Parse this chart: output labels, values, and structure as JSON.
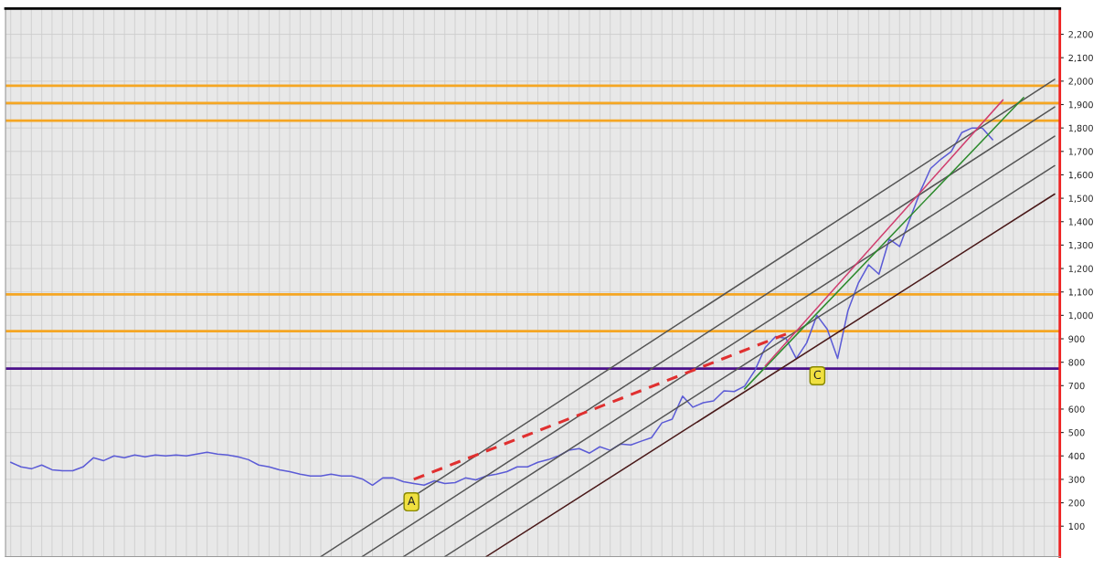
{
  "chart_data": {
    "type": "line",
    "categories": [
      null,
      null,
      null,
      null,
      null,
      null,
      null,
      null,
      null,
      null,
      null,
      null,
      null,
      null,
      null,
      null,
      null,
      null,
      null,
      null,
      null,
      null,
      null,
      null,
      null,
      null,
      null,
      null,
      null,
      null,
      null,
      null,
      null,
      null,
      null,
      null,
      null,
      null,
      null,
      null,
      null,
      null,
      null,
      null,
      null,
      null,
      null,
      null,
      null,
      null,
      null,
      null,
      null,
      null,
      null,
      null,
      null,
      null,
      null,
      null,
      null,
      null,
      null,
      null,
      null,
      null,
      null,
      null,
      null,
      null,
      null,
      null,
      null,
      null,
      null,
      null,
      null,
      null,
      null,
      null,
      null,
      null,
      null,
      null,
      null,
      null,
      null,
      null,
      null,
      null,
      null,
      null,
      null,
      null,
      null,
      null,
      null,
      null,
      null,
      null,
      null,
      null
    ],
    "ylim": [
      -30,
      2310
    ],
    "yticks": [
      100,
      200,
      300,
      400,
      500,
      600,
      700,
      800,
      900,
      {
        "value": 1000,
        "label": "1,000"
      },
      {
        "value": 1100,
        "label": "1,100"
      },
      {
        "value": 1200,
        "label": "1,200"
      },
      {
        "value": 1300,
        "label": "1,300"
      },
      {
        "value": 1400,
        "label": "1,400"
      },
      {
        "value": 1500,
        "label": "1,500"
      },
      {
        "value": 1600,
        "label": "1,600"
      },
      {
        "value": 1700,
        "label": "1,700"
      },
      {
        "value": 1800,
        "label": "1,800"
      },
      {
        "value": 1900,
        "label": "1,900"
      },
      {
        "value": 2000,
        "label": "2,000"
      },
      {
        "value": 2100,
        "label": "2,100"
      },
      {
        "value": 2200,
        "label": "2,200"
      }
    ],
    "tick_labels": "y",
    "grid": true,
    "line_style": "solid",
    "marker": "none",
    "series": [
      {
        "color": "#5b5bd6",
        "values": [
          373,
          353,
          345,
          361,
          341,
          337,
          337,
          353,
          392,
          380,
          400,
          392,
          404,
          396,
          404,
          400,
          404,
          400,
          408,
          416,
          408,
          404,
          396,
          384,
          361,
          353,
          341,
          333,
          322,
          314,
          314,
          322,
          314,
          314,
          302,
          275,
          306,
          306,
          290,
          282,
          275,
          294,
          282,
          286,
          306,
          298,
          314,
          322,
          333,
          353,
          353,
          373,
          384,
          400,
          424,
          431,
          412,
          439,
          424,
          451,
          447,
          463,
          478,
          541,
          557,
          655,
          608,
          627,
          635,
          678,
          675,
          698,
          765,
          863,
          910,
          902,
          816,
          882,
          1000,
          941,
          816,
          1020,
          1137,
          1216,
          1176,
          1325,
          1294,
          1412,
          1529,
          1627,
          1667,
          1700,
          1780,
          1800,
          1800,
          1750,
          null,
          null,
          null,
          null,
          null,
          null
        ]
      },
      {
        "color": "#555555",
        "values": [
          null,
          null,
          null,
          null,
          null,
          null,
          null,
          null,
          null,
          null,
          null,
          null,
          null,
          null,
          null,
          null,
          null,
          null,
          null,
          null,
          null,
          null,
          null,
          null,
          null,
          null,
          null,
          null,
          null,
          null,
          -30,
          null,
          null,
          null,
          null,
          null,
          null,
          null,
          null,
          null,
          null,
          null,
          null,
          null,
          null,
          null,
          null,
          null,
          null,
          null,
          null,
          null,
          null,
          null,
          null,
          null,
          null,
          null,
          null,
          null,
          null,
          null,
          null,
          null,
          null,
          null,
          null,
          null,
          null,
          null,
          null,
          null,
          null,
          null,
          null,
          null,
          null,
          null,
          null,
          null,
          null,
          null,
          null,
          null,
          null,
          null,
          null,
          null,
          null,
          null,
          null,
          null,
          null,
          null,
          null,
          null,
          null,
          null,
          null,
          null,
          null,
          2008
        ]
      },
      {
        "color": "#555555",
        "values": [
          null,
          null,
          null,
          null,
          null,
          null,
          null,
          null,
          null,
          null,
          null,
          null,
          null,
          null,
          null,
          null,
          null,
          null,
          null,
          null,
          null,
          null,
          null,
          null,
          null,
          null,
          null,
          null,
          null,
          null,
          null,
          null,
          null,
          null,
          -30,
          null,
          null,
          null,
          null,
          null,
          null,
          null,
          null,
          null,
          null,
          null,
          null,
          null,
          null,
          null,
          null,
          null,
          null,
          null,
          null,
          null,
          null,
          null,
          null,
          null,
          null,
          null,
          null,
          null,
          null,
          null,
          null,
          null,
          null,
          null,
          null,
          null,
          null,
          null,
          null,
          null,
          null,
          null,
          null,
          null,
          null,
          null,
          null,
          null,
          null,
          null,
          null,
          null,
          null,
          null,
          null,
          null,
          null,
          null,
          null,
          null,
          null,
          null,
          null,
          null,
          null,
          1890
        ]
      },
      {
        "color": "#555555",
        "values": [
          null,
          null,
          null,
          null,
          null,
          null,
          null,
          null,
          null,
          null,
          null,
          null,
          null,
          null,
          null,
          null,
          null,
          null,
          null,
          null,
          null,
          null,
          null,
          null,
          null,
          null,
          null,
          null,
          null,
          null,
          null,
          null,
          null,
          null,
          null,
          null,
          null,
          null,
          -30,
          null,
          null,
          null,
          null,
          null,
          null,
          null,
          null,
          null,
          null,
          null,
          null,
          null,
          null,
          null,
          null,
          null,
          null,
          null,
          null,
          null,
          null,
          null,
          null,
          null,
          null,
          null,
          null,
          null,
          null,
          null,
          null,
          null,
          null,
          null,
          null,
          null,
          null,
          null,
          null,
          null,
          null,
          null,
          null,
          null,
          null,
          null,
          null,
          null,
          null,
          null,
          null,
          null,
          null,
          null,
          null,
          null,
          null,
          null,
          null,
          null,
          null,
          1765
        ]
      },
      {
        "color": "#555555",
        "values": [
          null,
          null,
          null,
          null,
          null,
          null,
          null,
          null,
          null,
          null,
          null,
          null,
          null,
          null,
          null,
          null,
          null,
          null,
          null,
          null,
          null,
          null,
          null,
          null,
          null,
          null,
          null,
          null,
          null,
          null,
          null,
          null,
          null,
          null,
          null,
          null,
          null,
          null,
          null,
          null,
          null,
          null,
          -30,
          null,
          null,
          null,
          null,
          null,
          null,
          null,
          null,
          null,
          null,
          null,
          null,
          null,
          null,
          null,
          null,
          null,
          null,
          null,
          null,
          null,
          null,
          null,
          null,
          null,
          null,
          null,
          null,
          null,
          null,
          null,
          null,
          null,
          null,
          null,
          null,
          null,
          null,
          null,
          null,
          null,
          null,
          null,
          null,
          null,
          null,
          null,
          null,
          null,
          null,
          null,
          null,
          null,
          null,
          null,
          null,
          null,
          null,
          1639
        ]
      },
      {
        "color": "#4a1a1a",
        "values": [
          null,
          null,
          null,
          null,
          null,
          null,
          null,
          null,
          null,
          null,
          null,
          null,
          null,
          null,
          null,
          null,
          null,
          null,
          null,
          null,
          null,
          null,
          null,
          null,
          null,
          null,
          null,
          null,
          null,
          null,
          null,
          null,
          null,
          null,
          null,
          null,
          null,
          null,
          null,
          null,
          null,
          null,
          null,
          null,
          null,
          null,
          -30,
          null,
          null,
          null,
          null,
          null,
          null,
          null,
          null,
          null,
          null,
          null,
          null,
          null,
          null,
          null,
          null,
          null,
          null,
          null,
          null,
          null,
          null,
          null,
          null,
          null,
          null,
          null,
          null,
          null,
          null,
          null,
          null,
          null,
          null,
          null,
          null,
          null,
          null,
          null,
          null,
          null,
          null,
          null,
          null,
          null,
          null,
          null,
          null,
          null,
          null,
          null,
          null,
          null,
          null,
          1518
        ]
      },
      {
        "color": "#2e8b2e",
        "values": [
          null,
          null,
          null,
          null,
          null,
          null,
          null,
          null,
          null,
          null,
          null,
          null,
          null,
          null,
          null,
          null,
          null,
          null,
          null,
          null,
          null,
          null,
          null,
          null,
          null,
          null,
          null,
          null,
          null,
          null,
          null,
          null,
          null,
          null,
          null,
          null,
          null,
          null,
          null,
          null,
          null,
          null,
          null,
          null,
          null,
          null,
          null,
          null,
          null,
          null,
          null,
          null,
          null,
          null,
          null,
          null,
          null,
          null,
          null,
          null,
          null,
          null,
          null,
          null,
          null,
          null,
          null,
          null,
          null,
          null,
          null,
          686,
          null,
          null,
          null,
          null,
          null,
          null,
          null,
          null,
          null,
          null,
          null,
          null,
          null,
          null,
          null,
          null,
          null,
          null,
          null,
          null,
          null,
          null,
          null,
          null,
          null,
          null,
          1930,
          null,
          null,
          null
        ]
      },
      {
        "color": "#d04070",
        "values": [
          null,
          null,
          null,
          null,
          null,
          null,
          null,
          null,
          null,
          null,
          null,
          null,
          null,
          null,
          null,
          null,
          null,
          null,
          null,
          null,
          null,
          null,
          null,
          null,
          null,
          null,
          null,
          null,
          null,
          null,
          null,
          null,
          null,
          null,
          null,
          null,
          null,
          null,
          null,
          null,
          null,
          null,
          null,
          null,
          null,
          null,
          null,
          null,
          null,
          null,
          null,
          null,
          null,
          null,
          null,
          null,
          null,
          null,
          null,
          null,
          null,
          null,
          null,
          null,
          null,
          null,
          null,
          null,
          null,
          null,
          null,
          null,
          null,
          784,
          null,
          null,
          null,
          null,
          null,
          null,
          null,
          null,
          null,
          null,
          null,
          null,
          null,
          null,
          null,
          null,
          null,
          null,
          null,
          null,
          null,
          null,
          1920,
          null,
          null,
          null,
          null,
          null
        ]
      },
      {
        "color": "#e03030",
        "line_style": "dashed",
        "values": [
          null,
          null,
          null,
          null,
          null,
          null,
          null,
          null,
          null,
          null,
          null,
          null,
          null,
          null,
          null,
          null,
          null,
          null,
          null,
          null,
          null,
          null,
          null,
          null,
          null,
          null,
          null,
          null,
          null,
          null,
          null,
          null,
          null,
          null,
          null,
          null,
          null,
          null,
          null,
          300,
          null,
          null,
          null,
          null,
          null,
          null,
          null,
          null,
          null,
          null,
          null,
          null,
          null,
          null,
          null,
          null,
          null,
          null,
          null,
          null,
          null,
          null,
          null,
          null,
          null,
          null,
          null,
          null,
          null,
          null,
          null,
          null,
          null,
          null,
          null,
          920,
          null,
          null,
          null,
          null,
          null,
          null,
          null,
          null,
          null,
          null,
          null,
          null,
          null,
          null,
          null,
          null,
          null,
          null,
          null,
          null,
          null,
          null,
          null,
          null,
          null,
          null
        ]
      }
    ],
    "ref_lines": [
      {
        "axis": "y",
        "value": 1980,
        "color": "#f5a623"
      },
      {
        "axis": "y",
        "value": 1906,
        "color": "#f5a623"
      },
      {
        "axis": "y",
        "value": 1831,
        "color": "#f5a623"
      },
      {
        "axis": "y",
        "value": 1090,
        "color": "#f5a623"
      },
      {
        "axis": "y",
        "value": 933,
        "color": "#f5a623"
      },
      {
        "axis": "y",
        "value": 773,
        "color": "#4b0f8a"
      }
    ],
    "annotations": [
      "A",
      "C"
    ]
  }
}
